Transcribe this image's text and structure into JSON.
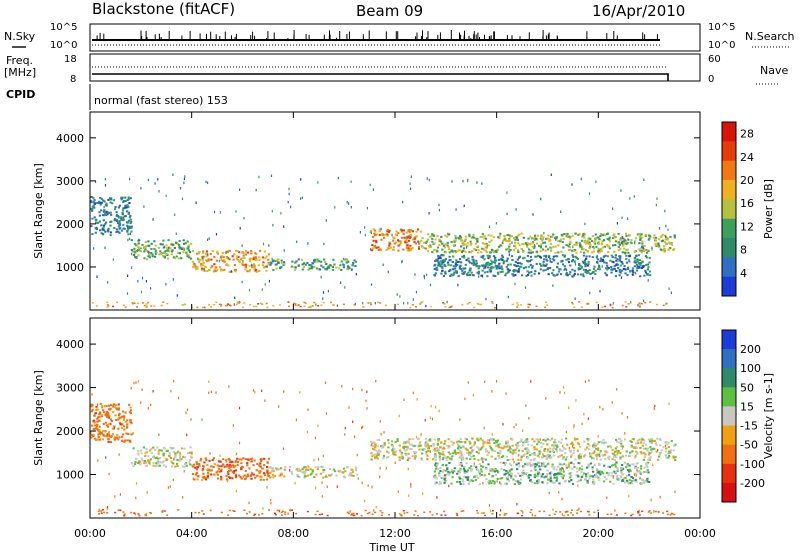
{
  "header": {
    "station": "Blackstone (fitACF)",
    "beam": "Beam 09",
    "date": "16/Apr/2010"
  },
  "top_panels": {
    "nsky_label": "N.Sky",
    "nsearch_label": "N.Search",
    "nsky_ticks": [
      "10^5",
      "10^0"
    ],
    "nsearch_ticks": [
      "10^5",
      "10^0"
    ],
    "freq_label": "Freq.",
    "freq_unit": "[MHz]",
    "freq_ticks": [
      "18",
      "8"
    ],
    "nave_label": "Nave",
    "nave_ticks": [
      "60",
      "0"
    ],
    "cpid_label": "CPID",
    "cpid_text": "normal (fast stereo) 153"
  },
  "colors": {
    "power": [
      "#1a3cd8",
      "#2f6fc4",
      "#2f8a6a",
      "#3aa05a",
      "#b8c040",
      "#f0b020",
      "#f07a10",
      "#e83a0a",
      "#d8140a"
    ],
    "velocity": [
      "#1a3cd8",
      "#2f6fc4",
      "#2f8a6a",
      "#5cc040",
      "#c8c8c0",
      "#f0a010",
      "#f07010",
      "#e83010",
      "#d81010"
    ]
  },
  "chart_data": [
    {
      "type": "heatmap",
      "title": "",
      "xlabel": "Time UT",
      "ylabel": "Slant Range [km]",
      "xlim": [
        0,
        24
      ],
      "ylim": [
        0,
        4600
      ],
      "x_ticks": [
        "00:00",
        "04:00",
        "08:00",
        "12:00",
        "16:00",
        "20:00",
        "00:00"
      ],
      "x_tick_values": [
        0,
        4,
        8,
        12,
        16,
        20,
        24
      ],
      "y_ticks": [
        1000,
        2000,
        3000,
        4000
      ],
      "colorbar": {
        "label": "Power [dB]",
        "ticks": [
          4,
          8,
          12,
          16,
          20,
          24,
          28
        ],
        "range": [
          0,
          30
        ]
      },
      "echo_bands": [
        {
          "t_start": 0.0,
          "t_end": 1.6,
          "r_low": 1750,
          "r_high": 2650,
          "power_db": 6
        },
        {
          "t_start": 1.6,
          "t_end": 4.0,
          "r_low": 1200,
          "r_high": 1650,
          "power_db": 12
        },
        {
          "t_start": 4.0,
          "t_end": 7.0,
          "r_low": 900,
          "r_high": 1400,
          "power_db": 20
        },
        {
          "t_start": 7.0,
          "t_end": 10.5,
          "r_low": 950,
          "r_high": 1200,
          "power_db": 10
        },
        {
          "t_start": 11.0,
          "t_end": 13.0,
          "r_low": 1400,
          "r_high": 1900,
          "power_db": 22
        },
        {
          "t_start": 13.0,
          "t_end": 23.0,
          "r_low": 1350,
          "r_high": 1800,
          "power_db": 14
        },
        {
          "t_start": 13.5,
          "t_end": 22.0,
          "r_low": 800,
          "r_high": 1300,
          "power_db": 6
        }
      ]
    },
    {
      "type": "heatmap",
      "title": "",
      "xlabel": "Time UT",
      "ylabel": "Slant Range [km]",
      "xlim": [
        0,
        24
      ],
      "ylim": [
        0,
        4600
      ],
      "x_ticks": [
        "00:00",
        "04:00",
        "08:00",
        "12:00",
        "16:00",
        "20:00",
        "00:00"
      ],
      "x_tick_values": [
        0,
        4,
        8,
        12,
        16,
        20,
        24
      ],
      "y_ticks": [
        1000,
        2000,
        3000,
        4000
      ],
      "colorbar": {
        "label": "Velocity [m s-1]",
        "ticks": [
          200,
          100,
          50,
          15,
          -15,
          -50,
          -100,
          -200
        ]
      },
      "echo_bands": [
        {
          "t_start": 0.0,
          "t_end": 1.6,
          "r_low": 1750,
          "r_high": 2650,
          "velocity_ms": -50
        },
        {
          "t_start": 1.6,
          "t_end": 4.0,
          "r_low": 1200,
          "r_high": 1650,
          "velocity_ms": 0
        },
        {
          "t_start": 4.0,
          "t_end": 7.0,
          "r_low": 900,
          "r_high": 1400,
          "velocity_ms": -60
        },
        {
          "t_start": 7.0,
          "t_end": 10.5,
          "r_low": 950,
          "r_high": 1200,
          "velocity_ms": 0
        },
        {
          "t_start": 11.0,
          "t_end": 23.0,
          "r_low": 1350,
          "r_high": 1850,
          "velocity_ms": 0
        },
        {
          "t_start": 13.5,
          "t_end": 22.0,
          "r_low": 800,
          "r_high": 1300,
          "velocity_ms": 20
        }
      ]
    }
  ]
}
